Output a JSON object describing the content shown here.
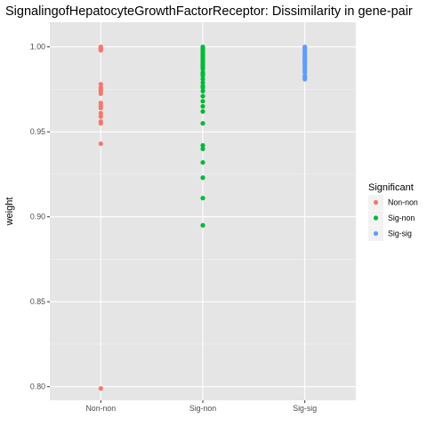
{
  "chart_data": {
    "type": "scatter",
    "title": "SignalingofHepatocyteGrowthFactorReceptor: Dissimilarity in gene-pair",
    "xlabel": "",
    "ylabel": "weight",
    "categories": [
      "Non-non",
      "Sig-non",
      "Sig-sig"
    ],
    "ylim": [
      0.792,
      1.0145
    ],
    "yticks": [
      0.8,
      0.85,
      0.9,
      0.95,
      1.0
    ],
    "ytick_labels": [
      "0.80",
      "0.85",
      "0.90",
      "0.95",
      "1.00"
    ],
    "grid": true,
    "background": "#e5e5e5",
    "legend": {
      "title": "Significant",
      "position": "right",
      "entries": [
        "Non-non",
        "Sig-non",
        "Sig-sig"
      ]
    },
    "series": [
      {
        "name": "Non-non",
        "category": "Non-non",
        "color": "#F8766D",
        "values": [
          1.0,
          0.9995,
          0.999,
          0.9985,
          0.998,
          0.978,
          0.976,
          0.975,
          0.974,
          0.9725,
          0.967,
          0.9655,
          0.964,
          0.961,
          0.959,
          0.956,
          0.955,
          0.943,
          0.799
        ]
      },
      {
        "name": "Sig-non",
        "category": "Sig-non",
        "color": "#00BA38",
        "values": [
          1.0,
          0.999,
          0.998,
          0.997,
          0.996,
          0.995,
          0.994,
          0.993,
          0.992,
          0.991,
          0.99,
          0.989,
          0.988,
          0.987,
          0.985,
          0.984,
          0.983,
          0.981,
          0.979,
          0.977,
          0.976,
          0.974,
          0.971,
          0.968,
          0.965,
          0.962,
          0.955,
          0.942,
          0.94,
          0.932,
          0.923,
          0.911,
          0.895
        ]
      },
      {
        "name": "Sig-sig",
        "category": "Sig-sig",
        "color": "#619CFF",
        "values": [
          1.0,
          0.9995,
          0.999,
          0.998,
          0.997,
          0.996,
          0.995,
          0.994,
          0.993,
          0.9925,
          0.992,
          0.991,
          0.99,
          0.989,
          0.988,
          0.987,
          0.986,
          0.985,
          0.983,
          0.982,
          0.981
        ]
      }
    ]
  }
}
